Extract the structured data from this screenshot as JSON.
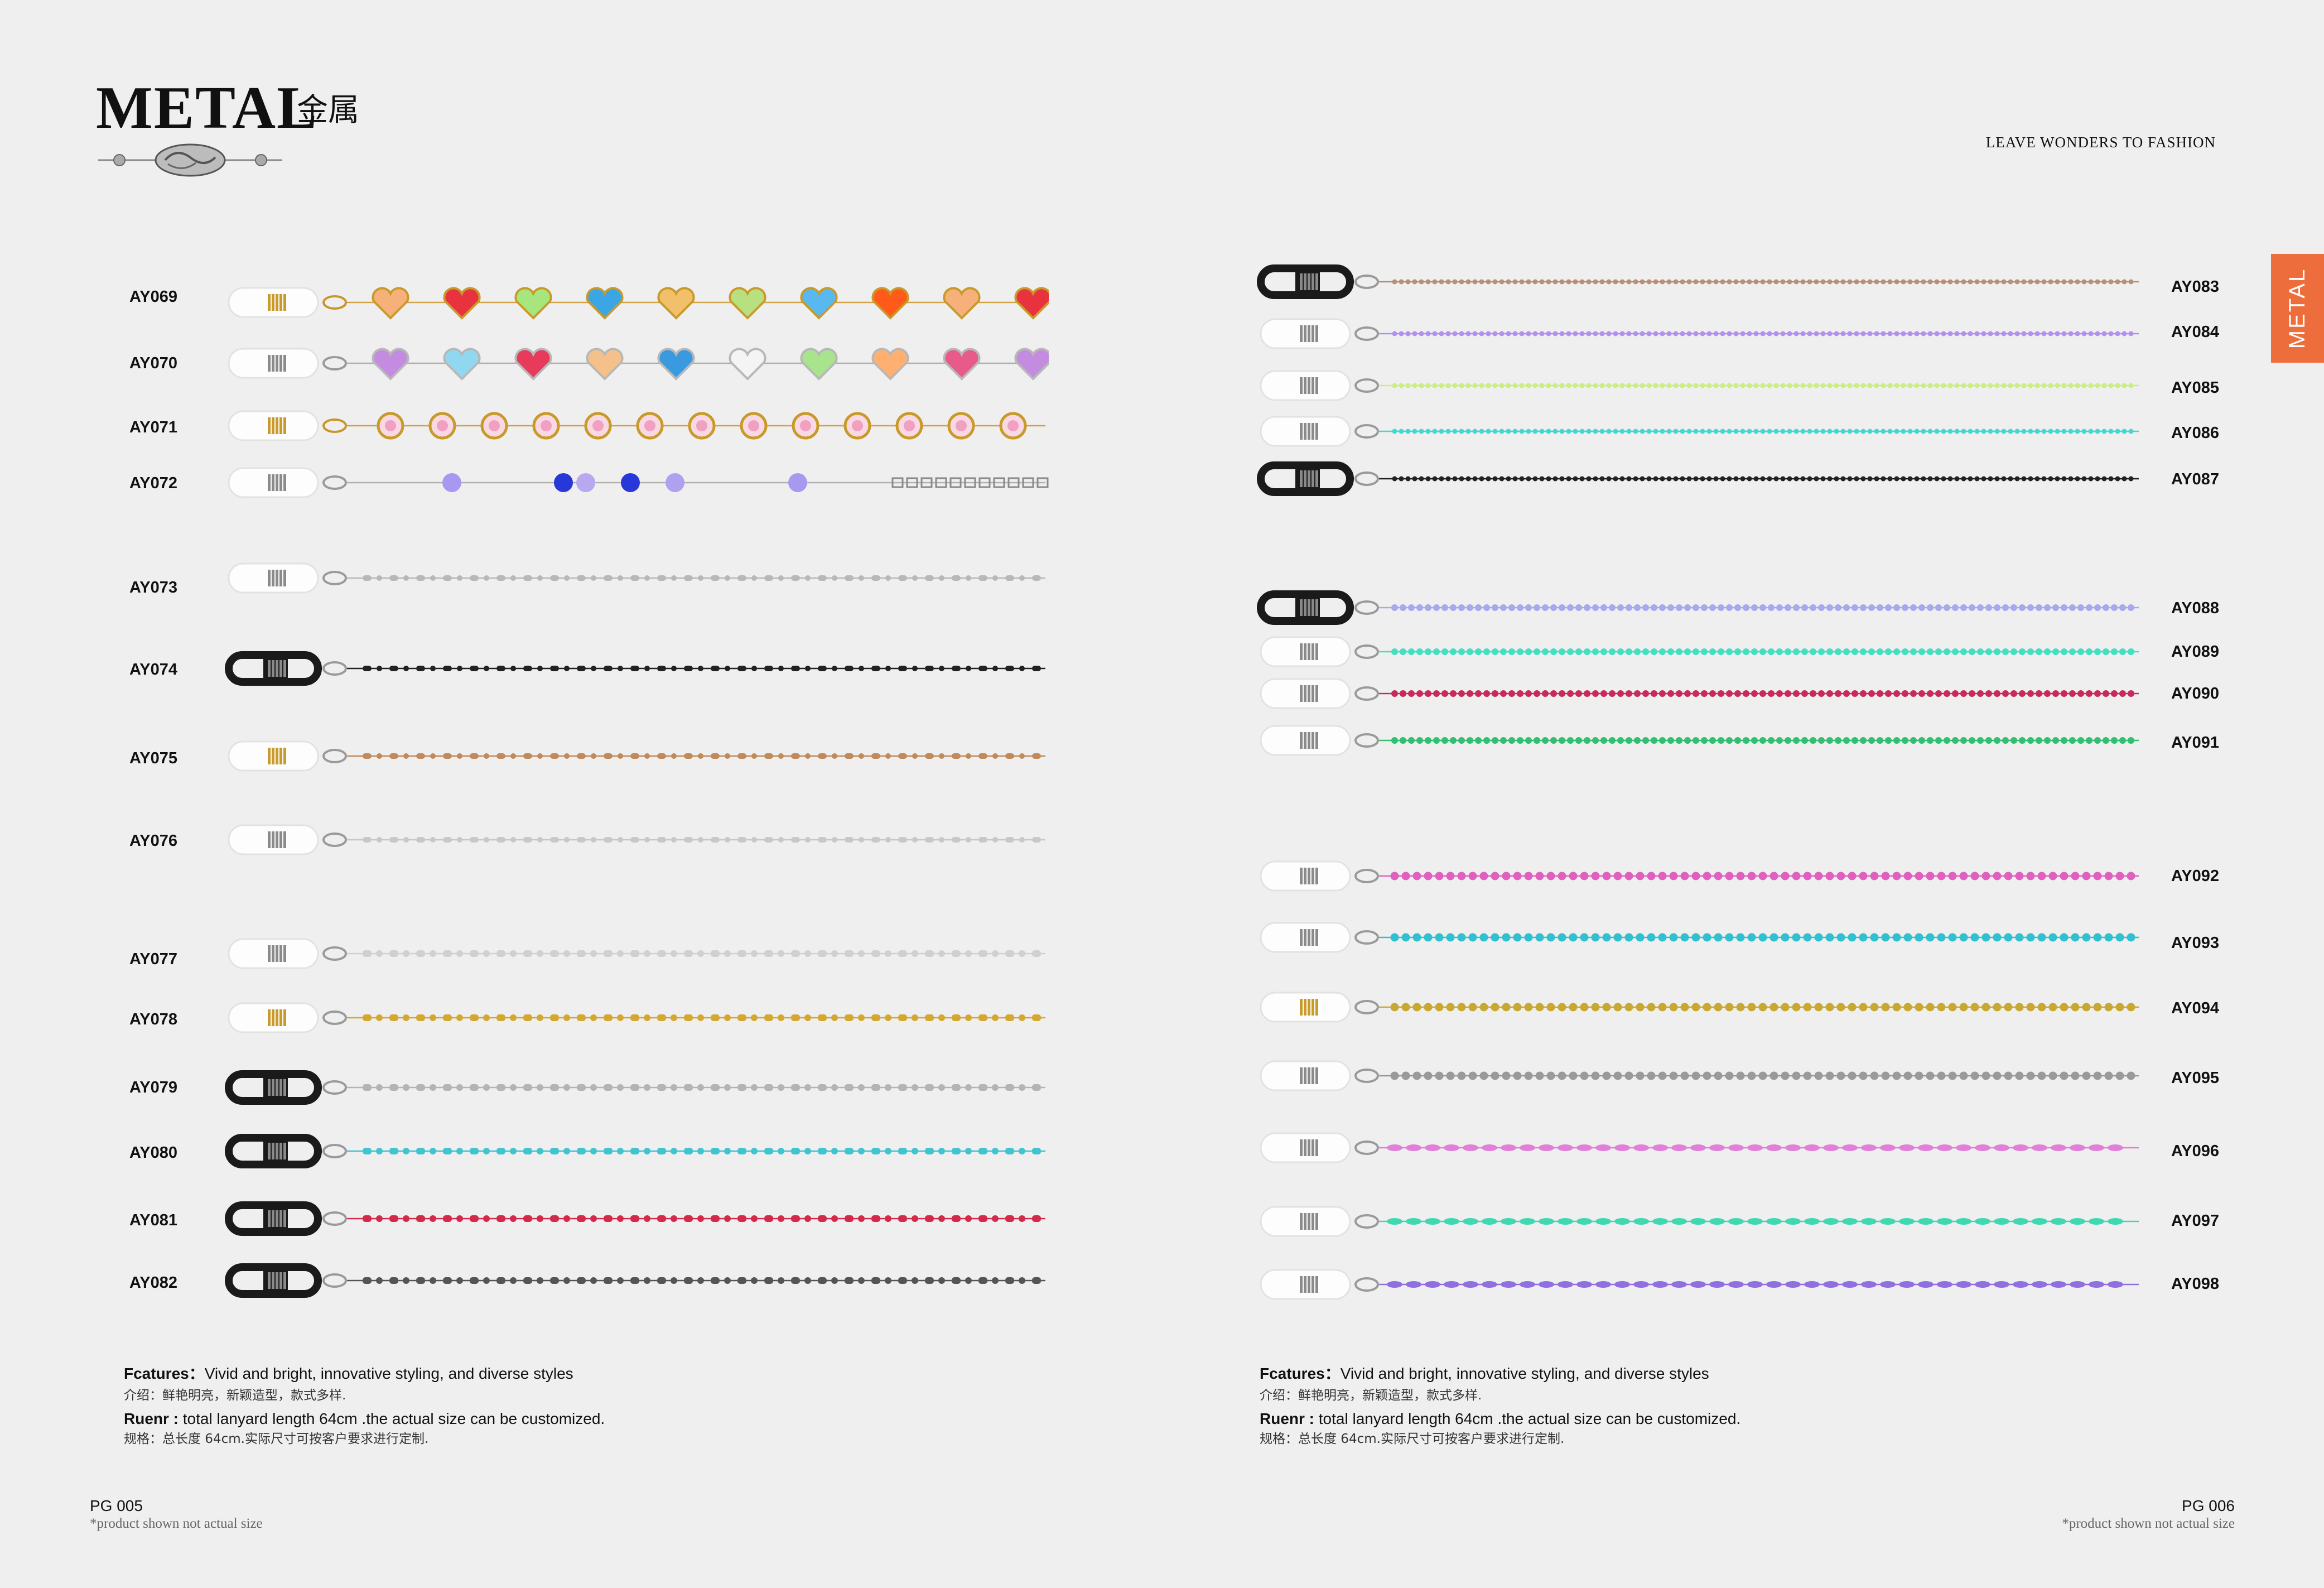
{
  "header": {
    "title": "METAL",
    "title_cn": "金属",
    "tagline": "LEAVE WONDERS TO FASHION",
    "side_tab": "METAL"
  },
  "left_page": {
    "products": [
      {
        "code": "AY069",
        "style": "hearts-gold",
        "colors": [
          "#f6b07a",
          "#e8323e",
          "#a7e67c",
          "#3aa6e6",
          "#f2c06a",
          "#b8e080",
          "#5ab8f0",
          "#ff5a1a"
        ],
        "ends": "clear"
      },
      {
        "code": "AY070",
        "style": "hearts-silver",
        "colors": [
          "#c48ce0",
          "#8fd8f0",
          "#e83a5a",
          "#f6c08a",
          "#3a9ae0",
          "#f4f4f4",
          "#a8e48c",
          "#ffb070",
          "#e85a8a"
        ],
        "ends": "clear"
      },
      {
        "code": "AY071",
        "style": "bezels-gold",
        "colors": [
          "#f0a0c0"
        ],
        "ends": "clear"
      },
      {
        "code": "AY072",
        "style": "crystal-twist",
        "colors": [
          "#a898f0",
          "#2838d8",
          "#b8a8f0",
          "#2838d8",
          "#b0a0f0"
        ],
        "ends": "clear"
      },
      {
        "code": "AY073",
        "style": "bead-bar",
        "colors": [
          "#b8b8b8"
        ],
        "ends": "clear"
      },
      {
        "code": "AY074",
        "style": "bead-bar",
        "colors": [
          "#222222"
        ],
        "ends": "black"
      },
      {
        "code": "AY075",
        "style": "bead-bar",
        "colors": [
          "#c08a5a"
        ],
        "ends": "clear"
      },
      {
        "code": "AY076",
        "style": "bead-bar",
        "colors": [
          "#c8c8c8"
        ],
        "ends": "clear"
      },
      {
        "code": "AY077",
        "style": "bar-fine",
        "colors": [
          "#d0d0d0"
        ],
        "ends": "clear"
      },
      {
        "code": "AY078",
        "style": "bar-fine",
        "colors": [
          "#d4a830"
        ],
        "ends": "clear"
      },
      {
        "code": "AY079",
        "style": "bar-fine",
        "colors": [
          "#b4b4b4"
        ],
        "ends": "black"
      },
      {
        "code": "AY080",
        "style": "bar-fine",
        "colors": [
          "#40c4d0"
        ],
        "ends": "black"
      },
      {
        "code": "AY081",
        "style": "bar-fine",
        "colors": [
          "#d42a4a"
        ],
        "ends": "black"
      },
      {
        "code": "AY082",
        "style": "bar-fine",
        "colors": [
          "#555555"
        ],
        "ends": "black"
      }
    ],
    "features_label": "Fcatures：",
    "features_text": "Vivid and bright, innovative styling, and diverse styles",
    "features_cn": "介绍：鲜艳明亮，新颖造型，款式多样.",
    "ruenr_label": "Ruenr :",
    "ruenr_text": " total lanyard length 64cm .the actual size can be customized.",
    "ruenr_cn": "规格：总长度 64cm.实际尺寸可按客户要求进行定制.",
    "page_number": "PG 005",
    "note": "*product shown not actual size"
  },
  "right_page": {
    "products": [
      {
        "code": "AY083",
        "style": "ball-fine",
        "colors": [
          "#b89078"
        ],
        "ends": "black"
      },
      {
        "code": "AY084",
        "style": "ball-fine",
        "colors": [
          "#b090f0"
        ],
        "ends": "clear"
      },
      {
        "code": "AY085",
        "style": "ball-fine",
        "colors": [
          "#c8f080"
        ],
        "ends": "clear"
      },
      {
        "code": "AY086",
        "style": "ball-fine",
        "colors": [
          "#40d8d0"
        ],
        "ends": "clear"
      },
      {
        "code": "AY087",
        "style": "ball-fine",
        "colors": [
          "#222222"
        ],
        "ends": "black"
      },
      {
        "code": "AY088",
        "style": "ball",
        "colors": [
          "#a8a8f0"
        ],
        "ends": "black"
      },
      {
        "code": "AY089",
        "style": "ball",
        "colors": [
          "#40e0c0"
        ],
        "ends": "clear"
      },
      {
        "code": "AY090",
        "style": "ball",
        "colors": [
          "#c82a5a"
        ],
        "ends": "clear"
      },
      {
        "code": "AY091",
        "style": "ball",
        "colors": [
          "#30c070"
        ],
        "ends": "clear"
      },
      {
        "code": "AY092",
        "style": "ball-lg",
        "colors": [
          "#e060c0"
        ],
        "ends": "clear"
      },
      {
        "code": "AY093",
        "style": "ball-lg",
        "colors": [
          "#30c0d0"
        ],
        "ends": "clear"
      },
      {
        "code": "AY094",
        "style": "ball-lg",
        "colors": [
          "#c8a830"
        ],
        "ends": "clear"
      },
      {
        "code": "AY095",
        "style": "ball-lg",
        "colors": [
          "#9a9a9a"
        ],
        "ends": "clear"
      },
      {
        "code": "AY096",
        "style": "rice",
        "colors": [
          "#e080d8"
        ],
        "ends": "clear"
      },
      {
        "code": "AY097",
        "style": "rice",
        "colors": [
          "#40d8b0"
        ],
        "ends": "clear"
      },
      {
        "code": "AY098",
        "style": "rice",
        "colors": [
          "#9070e0"
        ],
        "ends": "clear"
      }
    ],
    "features_label": "Fcatures：",
    "features_text": "Vivid and bright, innovative styling, and diverse styles",
    "features_cn": "介绍：鲜艳明亮，新颖造型，款式多样.",
    "ruenr_label": "Ruenr :",
    "ruenr_text": " total lanyard length 64cm .the actual size can be customized.",
    "ruenr_cn": "规格：总长度 64cm.实际尺寸可按客户要求进行定制.",
    "page_number": "PG 006",
    "note": "*product shown not actual size"
  }
}
